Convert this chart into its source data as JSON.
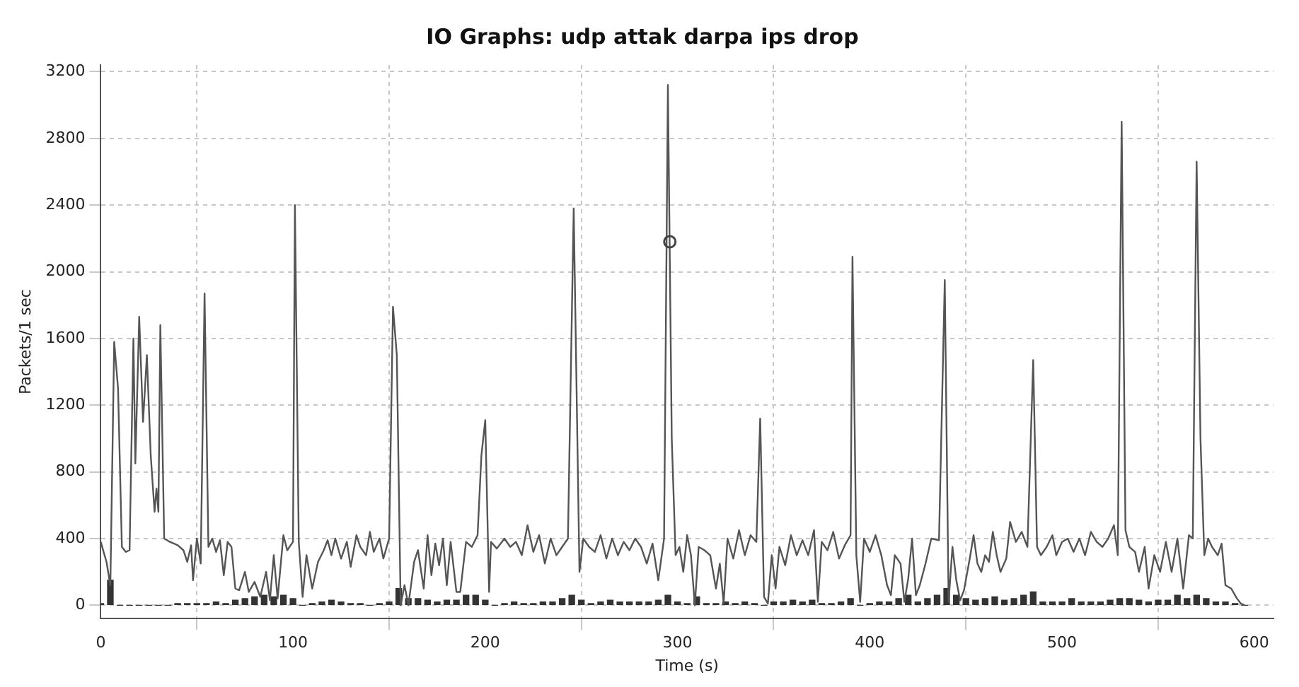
{
  "chart_data": {
    "type": "line",
    "title": "IO Graphs: udp attak darpa ips drop",
    "xlabel": "Time (s)",
    "ylabel": "Packets/1 sec",
    "xlim": [
      0,
      610
    ],
    "ylim": [
      -80,
      3240
    ],
    "xticks": [
      0,
      100,
      200,
      300,
      400,
      500,
      600
    ],
    "yticks": [
      0,
      400,
      800,
      1200,
      1600,
      2000,
      2400,
      2800,
      3200
    ],
    "grid": true,
    "legend": false,
    "marker": "none",
    "line_style": "solid",
    "series": [
      {
        "color": "#555555",
        "x": [
          0,
          3,
          5,
          7,
          9,
          11,
          13,
          15,
          17,
          18,
          20,
          22,
          24,
          26,
          28,
          29,
          30,
          31,
          33,
          36,
          40,
          43,
          45,
          47,
          48,
          50,
          52,
          54,
          56,
          58,
          60,
          62,
          64,
          66,
          68,
          70,
          72,
          75,
          77,
          80,
          83,
          86,
          88,
          90,
          92,
          95,
          97,
          100,
          101,
          103,
          105,
          107,
          110,
          113,
          116,
          118,
          120,
          122,
          125,
          128,
          130,
          133,
          135,
          138,
          140,
          142,
          145,
          147,
          150,
          152,
          154,
          156,
          158,
          160,
          163,
          165,
          168,
          170,
          172,
          174,
          176,
          178,
          180,
          182,
          185,
          187,
          190,
          193,
          196,
          198,
          200,
          202,
          203,
          206,
          210,
          213,
          216,
          219,
          222,
          225,
          228,
          231,
          234,
          237,
          240,
          243,
          246,
          249,
          251,
          254,
          257,
          260,
          263,
          266,
          269,
          272,
          275,
          278,
          281,
          284,
          287,
          290,
          293,
          295,
          297,
          299,
          301,
          303,
          305,
          307,
          309,
          311,
          314,
          317,
          320,
          322,
          324,
          326,
          329,
          332,
          335,
          338,
          341,
          343,
          345,
          347,
          349,
          351,
          353,
          356,
          359,
          362,
          365,
          368,
          371,
          373,
          375,
          378,
          381,
          384,
          387,
          390,
          391,
          393,
          395,
          397,
          400,
          403,
          406,
          409,
          411,
          413,
          416,
          418,
          420,
          422,
          424,
          426,
          429,
          432,
          436,
          439,
          441,
          443,
          445,
          447,
          449,
          452,
          454,
          456,
          458,
          460,
          462,
          464,
          466,
          468,
          471,
          473,
          476,
          479,
          482,
          485,
          487,
          489,
          492,
          495,
          497,
          500,
          503,
          506,
          509,
          512,
          515,
          518,
          521,
          524,
          527,
          529,
          531,
          533,
          535,
          538,
          540,
          543,
          545,
          548,
          551,
          554,
          557,
          560,
          563,
          566,
          568,
          570,
          572,
          574,
          576,
          578,
          581,
          583,
          585,
          588,
          591,
          593,
          595
        ],
        "values": [
          380,
          260,
          120,
          1580,
          1300,
          350,
          320,
          330,
          1600,
          850,
          1730,
          1100,
          1500,
          900,
          560,
          700,
          560,
          1680,
          400,
          380,
          360,
          330,
          260,
          360,
          150,
          400,
          250,
          1870,
          350,
          400,
          320,
          390,
          180,
          380,
          350,
          100,
          90,
          200,
          80,
          140,
          50,
          200,
          30,
          300,
          40,
          420,
          330,
          380,
          2400,
          380,
          50,
          300,
          100,
          260,
          330,
          390,
          300,
          400,
          280,
          380,
          230,
          420,
          350,
          300,
          440,
          320,
          400,
          280,
          400,
          1790,
          1500,
          0,
          120,
          0,
          260,
          330,
          100,
          420,
          180,
          370,
          240,
          400,
          120,
          380,
          80,
          80,
          380,
          350,
          420,
          900,
          1110,
          80,
          380,
          340,
          400,
          350,
          380,
          300,
          480,
          320,
          420,
          250,
          400,
          300,
          350,
          400,
          2380,
          200,
          400,
          350,
          320,
          420,
          280,
          400,
          300,
          380,
          330,
          400,
          350,
          250,
          370,
          150,
          400,
          3120,
          1000,
          300,
          350,
          200,
          420,
          300,
          0,
          350,
          330,
          300,
          100,
          250,
          10,
          400,
          280,
          450,
          300,
          420,
          380,
          1120,
          50,
          10,
          300,
          100,
          350,
          240,
          420,
          300,
          390,
          300,
          450,
          20,
          380,
          330,
          440,
          280,
          360,
          420,
          2090,
          300,
          20,
          400,
          320,
          420,
          300,
          120,
          60,
          300,
          250,
          20,
          160,
          400,
          60,
          120,
          250,
          400,
          390,
          1950,
          20,
          350,
          150,
          30,
          90,
          280,
          420,
          250,
          200,
          300,
          260,
          440,
          300,
          200,
          280,
          500,
          380,
          440,
          350,
          1470,
          350,
          300,
          350,
          420,
          300,
          380,
          400,
          320,
          400,
          300,
          440,
          380,
          350,
          400,
          480,
          300,
          2900,
          450,
          350,
          320,
          200,
          350,
          100,
          300,
          200,
          380,
          200,
          400,
          100,
          420,
          400,
          2660,
          1000,
          300,
          400,
          350,
          300,
          370,
          120,
          100,
          40,
          10,
          0
        ]
      },
      {
        "type": "bar",
        "color": "#333333",
        "x": [
          0,
          5,
          10,
          15,
          20,
          25,
          30,
          35,
          40,
          45,
          50,
          55,
          60,
          65,
          70,
          75,
          80,
          85,
          90,
          95,
          100,
          105,
          110,
          115,
          120,
          125,
          130,
          135,
          140,
          145,
          150,
          155,
          160,
          165,
          170,
          175,
          180,
          185,
          190,
          195,
          200,
          205,
          210,
          215,
          220,
          225,
          230,
          235,
          240,
          245,
          250,
          255,
          260,
          265,
          270,
          275,
          280,
          285,
          290,
          295,
          300,
          305,
          310,
          315,
          320,
          325,
          330,
          335,
          340,
          345,
          350,
          355,
          360,
          365,
          370,
          375,
          380,
          385,
          390,
          395,
          400,
          405,
          410,
          415,
          420,
          425,
          430,
          435,
          440,
          445,
          450,
          455,
          460,
          465,
          470,
          475,
          480,
          485,
          490,
          495,
          500,
          505,
          510,
          515,
          520,
          525,
          530,
          535,
          540,
          545,
          550,
          555,
          560,
          565,
          570,
          575,
          580,
          585,
          590,
          595
        ],
        "values": [
          10,
          150,
          0,
          0,
          0,
          0,
          0,
          0,
          10,
          10,
          10,
          10,
          20,
          10,
          30,
          40,
          50,
          60,
          50,
          60,
          40,
          0,
          10,
          20,
          30,
          20,
          10,
          10,
          0,
          10,
          20,
          100,
          40,
          40,
          30,
          20,
          30,
          30,
          60,
          60,
          30,
          0,
          10,
          20,
          10,
          10,
          20,
          20,
          40,
          60,
          30,
          10,
          20,
          30,
          20,
          20,
          20,
          20,
          30,
          60,
          20,
          10,
          50,
          10,
          10,
          20,
          10,
          20,
          10,
          0,
          20,
          20,
          30,
          20,
          30,
          10,
          10,
          20,
          40,
          0,
          10,
          20,
          20,
          40,
          60,
          20,
          40,
          60,
          100,
          60,
          40,
          30,
          40,
          50,
          30,
          40,
          60,
          80,
          20,
          20,
          20,
          40,
          20,
          20,
          20,
          30,
          40,
          40,
          30,
          20,
          30,
          30,
          60,
          40,
          60,
          40,
          20,
          20,
          10,
          0
        ]
      },
      {
        "type": "scatter",
        "color": "#444444",
        "marker": "circle",
        "x": [
          296
        ],
        "values": [
          2180
        ]
      }
    ]
  }
}
